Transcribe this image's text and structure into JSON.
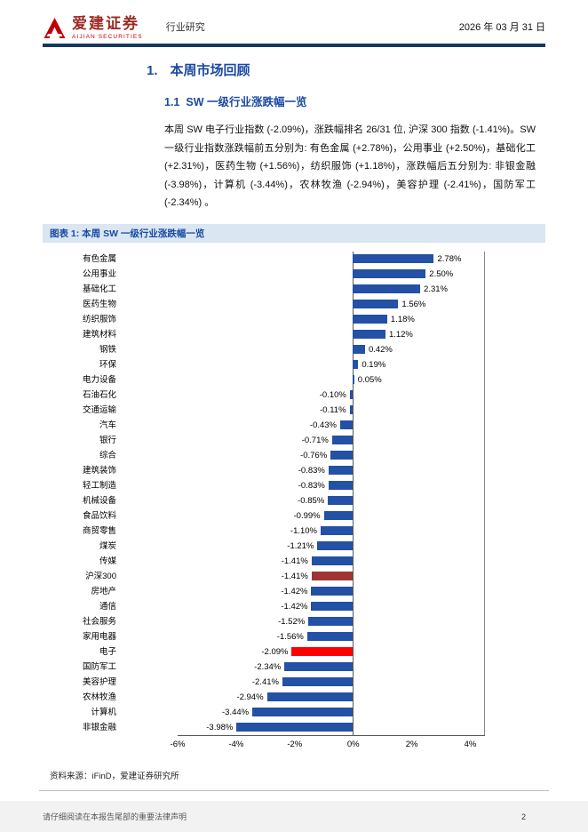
{
  "header": {
    "brand_cn": "爱建证券",
    "brand_en": "AIJIAN SECURITIES",
    "doc_type": "行业研究",
    "date": "2026 年 03 月 31 日"
  },
  "section": {
    "number": "1.",
    "title": "本周市场回顾",
    "sub_number": "1.1",
    "sub_title": "SW 一级行业涨跌幅一览",
    "paragraph": "本周 SW 电子行业指数 (-2.09%)，涨跌幅排名 26/31 位, 沪深 300 指数 (-1.41%)。SW 一级行业指数涨跌幅前五分别为: 有色金属 (+2.78%)，公用事业 (+2.50%)，基础化工 (+2.31%)，医药生物 (+1.56%)，纺织服饰 (+1.18%)，涨跌幅后五分别为: 非银金融 (-3.98%)，计算机 (-3.44%)，农林牧渔 (-2.94%)，美容护理 (-2.41%)，国防军工 (-2.34%) 。"
  },
  "figure": {
    "caption": "图表 1: 本周 SW 一级行业涨跌幅一览",
    "source": "资料来源：iFinD，爱建证券研究所"
  },
  "chart_data": {
    "type": "bar",
    "orientation": "horizontal",
    "title": "本周 SW 一级行业涨跌幅一览",
    "categories": [
      "有色金属",
      "公用事业",
      "基础化工",
      "医药生物",
      "纺织服饰",
      "建筑材料",
      "钢铁",
      "环保",
      "电力设备",
      "石油石化",
      "交通运输",
      "汽车",
      "银行",
      "综合",
      "建筑装饰",
      "轻工制造",
      "机械设备",
      "食品饮料",
      "商贸零售",
      "煤炭",
      "传媒",
      "沪深300",
      "房地产",
      "通信",
      "社会服务",
      "家用电器",
      "电子",
      "国防军工",
      "美容护理",
      "农林牧渔",
      "计算机",
      "非银金融"
    ],
    "values": [
      2.78,
      2.5,
      2.31,
      1.56,
      1.18,
      1.12,
      0.42,
      0.19,
      0.05,
      -0.1,
      -0.11,
      -0.43,
      -0.71,
      -0.76,
      -0.83,
      -0.83,
      -0.85,
      -0.99,
      -1.1,
      -1.21,
      -1.41,
      -1.41,
      -1.42,
      -1.42,
      -1.52,
      -1.56,
      -2.09,
      -2.34,
      -2.41,
      -2.94,
      -3.44,
      -3.98
    ],
    "labels": [
      "2.78%",
      "2.50%",
      "2.31%",
      "1.56%",
      "1.18%",
      "1.12%",
      "0.42%",
      "0.19%",
      "0.05%",
      "-0.10%",
      "-0.11%",
      "-0.43%",
      "-0.71%",
      "-0.76%",
      "-0.83%",
      "-0.83%",
      "-0.85%",
      "-0.99%",
      "-1.10%",
      "-1.21%",
      "-1.41%",
      "-1.41%",
      "-1.42%",
      "-1.42%",
      "-1.52%",
      "-1.56%",
      "-2.09%",
      "-2.34%",
      "-2.41%",
      "-2.94%",
      "-3.44%",
      "-3.98%"
    ],
    "xlim": [
      -6,
      4.5
    ],
    "xticks": [
      -6,
      -4,
      -2,
      0,
      2,
      4
    ],
    "xtick_labels": [
      "-6%",
      "-4%",
      "-2%",
      "0%",
      "2%",
      "4%"
    ],
    "bar_color": "#2351A5",
    "highlights": {
      "沪深300": "#9E3534",
      "电子": "#FF0000"
    },
    "grid": false,
    "legend_position": "none"
  },
  "footer": {
    "disclaimer": "请仔细阅读在本报告尾部的重要法律声明",
    "page_number": "2"
  },
  "colors": {
    "heading_blue": "#1B4AA2",
    "header_rule_navy": "#17375E",
    "caption_bg": "#DAE6F2",
    "logo_red": "#C00000",
    "bar_blue": "#2351A5",
    "hs300_dark_red": "#9E3534",
    "electronics_red": "#FF0000",
    "footer_bg": "#F2F2F2"
  }
}
